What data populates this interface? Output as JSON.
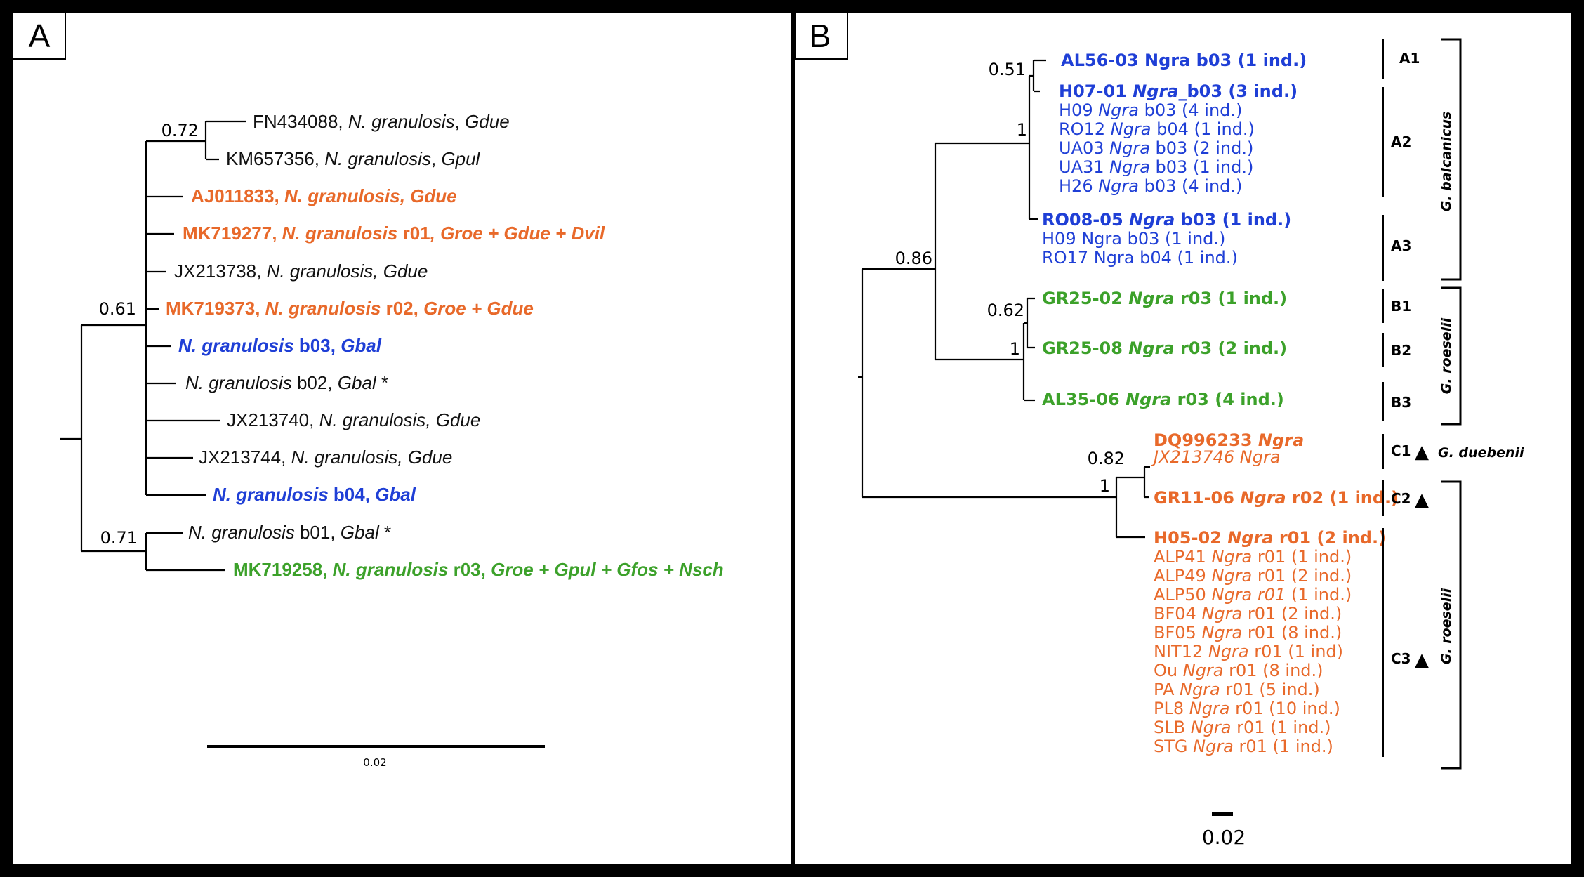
{
  "colors": {
    "black": "#111111",
    "orange": "#e8692a",
    "blue": "#1f3fd6",
    "green": "#3ca12a"
  },
  "panelA": {
    "letter": "A",
    "scale_label": "0.02",
    "supports": [
      "0.72",
      "0.61",
      "0.71"
    ],
    "leaves": [
      {
        "color": "black",
        "bold": false,
        "parts": [
          {
            "t": "FN434088, "
          },
          {
            "t": "N. granulosis",
            "i": true
          },
          {
            "t": ", "
          },
          {
            "t": "Gdue",
            "i": true
          }
        ]
      },
      {
        "color": "black",
        "bold": false,
        "parts": [
          {
            "t": "KM657356, "
          },
          {
            "t": "N. granulosis",
            "i": true
          },
          {
            "t": ", "
          },
          {
            "t": "Gpul",
            "i": true
          }
        ]
      },
      {
        "color": "orange",
        "bold": true,
        "parts": [
          {
            "t": "AJ011833, "
          },
          {
            "t": "N. granulosis, Gdue",
            "i": true
          }
        ]
      },
      {
        "color": "orange",
        "bold": true,
        "parts": [
          {
            "t": "MK719277, "
          },
          {
            "t": "N. granulosis",
            "i": true
          },
          {
            "t": " r01"
          },
          {
            "t": ", Groe + Gdue + Dvil",
            "i": true
          }
        ]
      },
      {
        "color": "black",
        "bold": false,
        "parts": [
          {
            "t": "JX213738, "
          },
          {
            "t": "N. granulosis, Gdue",
            "i": true
          }
        ]
      },
      {
        "color": "orange",
        "bold": true,
        "parts": [
          {
            "t": "MK719373, "
          },
          {
            "t": "N. granulosis",
            "i": true
          },
          {
            "t": " r02, "
          },
          {
            "t": "Groe + Gdue",
            "i": true
          }
        ]
      },
      {
        "color": "blue",
        "bold": true,
        "parts": [
          {
            "t": "N. granulosis",
            "i": true
          },
          {
            "t": " b03, "
          },
          {
            "t": "Gbal",
            "i": true
          }
        ]
      },
      {
        "color": "black",
        "bold": false,
        "parts": [
          {
            "t": "N. granulosis",
            "i": true
          },
          {
            "t": " b02, "
          },
          {
            "t": "Gbal",
            "i": true
          },
          {
            "t": " *"
          }
        ]
      },
      {
        "color": "black",
        "bold": false,
        "parts": [
          {
            "t": "JX213740, "
          },
          {
            "t": "N. granulosis, Gdue",
            "i": true
          }
        ]
      },
      {
        "color": "black",
        "bold": false,
        "parts": [
          {
            "t": "JX213744, "
          },
          {
            "t": "N. granulosis, Gdue",
            "i": true
          }
        ]
      },
      {
        "color": "blue",
        "bold": true,
        "parts": [
          {
            "t": "N. granulosis",
            "i": true
          },
          {
            "t": " b04, "
          },
          {
            "t": "Gbal",
            "i": true
          }
        ]
      },
      {
        "color": "black",
        "bold": false,
        "parts": [
          {
            "t": "N. granulosis",
            "i": true
          },
          {
            "t": " b01, "
          },
          {
            "t": "Gbal",
            "i": true
          },
          {
            "t": " *"
          }
        ]
      },
      {
        "color": "green",
        "bold": true,
        "parts": [
          {
            "t": "MK719258, "
          },
          {
            "t": "N. granulosis",
            "i": true
          },
          {
            "t": " r03, "
          },
          {
            "t": "Groe + Gpul + Gfos + Nsch",
            "i": true
          }
        ]
      }
    ]
  },
  "panelB": {
    "letter": "B",
    "scale_label": "0.02",
    "supports": [
      "0.51",
      "1",
      "0.86",
      "0.62",
      "1",
      "0.82",
      "1"
    ],
    "leaves": [
      {
        "color": "blue",
        "bold": true,
        "parts": [
          {
            "t": "AL56-03 Ngra b03 (1 ind.)"
          }
        ]
      },
      {
        "color": "blue",
        "bold": true,
        "parts": [
          {
            "t": "H07-01 "
          },
          {
            "t": "Ngra",
            "i": true
          },
          {
            "t": "_b03 (3 ind.)"
          }
        ]
      },
      {
        "color": "blue",
        "bold": false,
        "parts": [
          {
            "t": "H09 "
          },
          {
            "t": "Ngra",
            "i": true
          },
          {
            "t": " b03 (4 ind.)"
          }
        ]
      },
      {
        "color": "blue",
        "bold": false,
        "parts": [
          {
            "t": "RO12 "
          },
          {
            "t": "Ngra",
            "i": true
          },
          {
            "t": " b04 (1 ind.)"
          }
        ]
      },
      {
        "color": "blue",
        "bold": false,
        "parts": [
          {
            "t": "UA03 "
          },
          {
            "t": "Ngra",
            "i": true
          },
          {
            "t": " b03 (2 ind.)"
          }
        ]
      },
      {
        "color": "blue",
        "bold": false,
        "parts": [
          {
            "t": "UA31 "
          },
          {
            "t": "Ngra",
            "i": true
          },
          {
            "t": " b03 (1 ind.)"
          }
        ]
      },
      {
        "color": "blue",
        "bold": false,
        "parts": [
          {
            "t": "H26 "
          },
          {
            "t": "Ngra",
            "i": true
          },
          {
            "t": " b03 (4 ind.)"
          }
        ]
      },
      {
        "color": "blue",
        "bold": true,
        "parts": [
          {
            "t": "RO08-05 "
          },
          {
            "t": "Ngra",
            "i": true
          },
          {
            "t": " b03 (1 ind.)"
          }
        ]
      },
      {
        "color": "blue",
        "bold": false,
        "parts": [
          {
            "t": "H09 Ngra b03 (1 ind.)"
          }
        ]
      },
      {
        "color": "blue",
        "bold": false,
        "parts": [
          {
            "t": "RO17 Ngra b04 (1 ind.)"
          }
        ]
      },
      {
        "color": "green",
        "bold": true,
        "parts": [
          {
            "t": "GR25-02 "
          },
          {
            "t": "Ngra",
            "i": true
          },
          {
            "t": " r03 (1 ind.)"
          }
        ]
      },
      {
        "color": "green",
        "bold": true,
        "parts": [
          {
            "t": "GR25-08 "
          },
          {
            "t": "Ngra",
            "i": true
          },
          {
            "t": " r03 (2 ind.)"
          }
        ]
      },
      {
        "color": "green",
        "bold": true,
        "parts": [
          {
            "t": "AL35-06 "
          },
          {
            "t": "Ngra",
            "i": true
          },
          {
            "t": " r03 (4 ind.)"
          }
        ]
      },
      {
        "color": "orange",
        "bold": true,
        "parts": [
          {
            "t": "DQ996233 "
          },
          {
            "t": "Ngra",
            "i": true
          }
        ]
      },
      {
        "color": "orange",
        "bold": false,
        "parts": [
          {
            "t": "JX213746 Ngra",
            "i": true
          }
        ]
      },
      {
        "color": "orange",
        "bold": true,
        "parts": [
          {
            "t": "GR11-06 "
          },
          {
            "t": "Ngra",
            "i": true
          },
          {
            "t": " r02 (1 ind.)"
          }
        ]
      },
      {
        "color": "orange",
        "bold": true,
        "parts": [
          {
            "t": "H05-02 "
          },
          {
            "t": "Ngra",
            "i": true
          },
          {
            "t": " r01 (2 ind.)"
          }
        ]
      },
      {
        "color": "orange",
        "bold": false,
        "parts": [
          {
            "t": "ALP41 "
          },
          {
            "t": "Ngra",
            "i": true
          },
          {
            "t": " r01 (1 ind.)"
          }
        ]
      },
      {
        "color": "orange",
        "bold": false,
        "parts": [
          {
            "t": "ALP49 "
          },
          {
            "t": "Ngra",
            "i": true
          },
          {
            "t": " r01 (2 ind.)"
          }
        ]
      },
      {
        "color": "orange",
        "bold": false,
        "parts": [
          {
            "t": "ALP50 "
          },
          {
            "t": "Ngra r01",
            "i": true
          },
          {
            "t": " (1 ind.)"
          }
        ]
      },
      {
        "color": "orange",
        "bold": false,
        "parts": [
          {
            "t": "BF04 "
          },
          {
            "t": "Ngra",
            "i": true
          },
          {
            "t": " r01 (2 ind.)"
          }
        ]
      },
      {
        "color": "orange",
        "bold": false,
        "parts": [
          {
            "t": "BF05 "
          },
          {
            "t": "Ngra",
            "i": true
          },
          {
            "t": " r01 (8 ind.)"
          }
        ]
      },
      {
        "color": "orange",
        "bold": false,
        "parts": [
          {
            "t": "NIT12 "
          },
          {
            "t": "Ngra",
            "i": true
          },
          {
            "t": " r01 (1 ind)"
          }
        ]
      },
      {
        "color": "orange",
        "bold": false,
        "parts": [
          {
            "t": "Ou "
          },
          {
            "t": "Ngra",
            "i": true
          },
          {
            "t": " r01 (8 ind.)"
          }
        ]
      },
      {
        "color": "orange",
        "bold": false,
        "parts": [
          {
            "t": "PA "
          },
          {
            "t": "Ngra",
            "i": true
          },
          {
            "t": " r01 (5 ind.)"
          }
        ]
      },
      {
        "color": "orange",
        "bold": false,
        "parts": [
          {
            "t": "PL8 "
          },
          {
            "t": "Ngra",
            "i": true
          },
          {
            "t": " r01 (10 ind.)"
          }
        ]
      },
      {
        "color": "orange",
        "bold": false,
        "parts": [
          {
            "t": "SLB "
          },
          {
            "t": "Ngra",
            "i": true
          },
          {
            "t": " r01 (1 ind.)"
          }
        ]
      },
      {
        "color": "orange",
        "bold": false,
        "parts": [
          {
            "t": "STG "
          },
          {
            "t": "Ngra",
            "i": true
          },
          {
            "t": " r01 (1 ind.)"
          }
        ]
      }
    ],
    "clades": [
      {
        "label": "A1",
        "color": "blue"
      },
      {
        "label": "A2",
        "color": "blue"
      },
      {
        "label": "A3",
        "color": "blue"
      },
      {
        "label": "B1",
        "color": "green"
      },
      {
        "label": "B2",
        "color": "green"
      },
      {
        "label": "B3",
        "color": "green"
      },
      {
        "label": "C1",
        "color": "orange"
      },
      {
        "label": "C2",
        "color": "orange"
      },
      {
        "label": "C3",
        "color": "orange"
      }
    ],
    "groups": [
      "G. balcanicus",
      "G. roeselii",
      "G. duebenii",
      "G. roeselii"
    ],
    "triangle": "▲"
  }
}
